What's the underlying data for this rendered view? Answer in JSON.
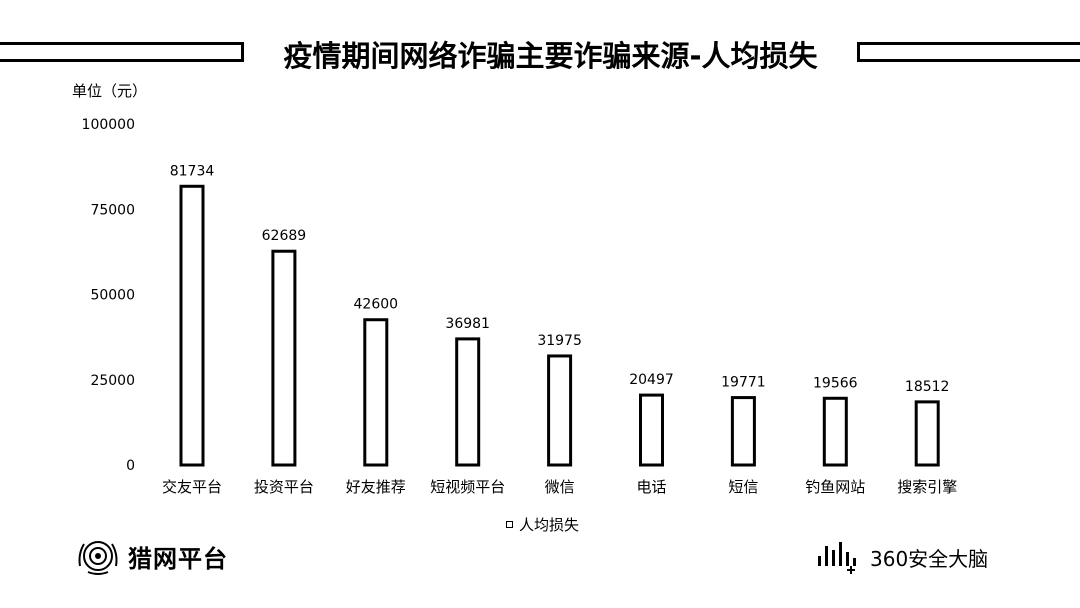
{
  "header": {
    "title": "疫情期间网络诈骗主要诈骗来源-人均损失"
  },
  "footer": {
    "left_logo_text": "猎网平台",
    "right_logo_text": "360安全大脑"
  },
  "chart_data": {
    "type": "bar",
    "title": "疫情期间网络诈骗主要诈骗来源-人均损失",
    "unit_label": "单位（元）",
    "categories": [
      "交友平台",
      "投资平台",
      "好友推荐",
      "短视频平台",
      "微信",
      "电话",
      "短信",
      "钓鱼网站",
      "搜索引擎"
    ],
    "series": [
      {
        "name": "人均损失",
        "values": [
          81734,
          62689,
          42600,
          36981,
          31975,
          20497,
          19771,
          19566,
          18512
        ]
      }
    ],
    "ylim": [
      0,
      100000
    ],
    "yticks": [
      0,
      25000,
      50000,
      75000,
      100000
    ],
    "ytick_labels": [
      "0",
      "25000",
      "50000",
      "75000",
      "100000"
    ],
    "grid": false,
    "legend": "bottom",
    "colors": {
      "bar_fill": "#ffffff",
      "bar_stroke": "#000000"
    }
  }
}
